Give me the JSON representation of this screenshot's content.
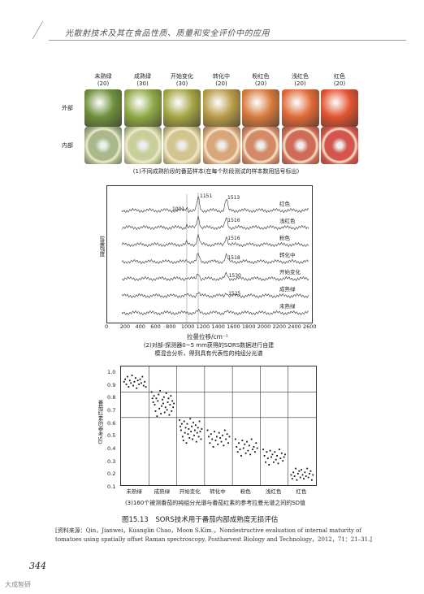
{
  "header": {
    "running_title": "光散射技术及其在食品性质、质量和安全评价中的应用"
  },
  "figure_a": {
    "stages": [
      {
        "name": "未熟绿",
        "n": "(20)"
      },
      {
        "name": "成熟绿",
        "n": "(30)"
      },
      {
        "name": "开始变化",
        "n": "(30)"
      },
      {
        "name": "转化中",
        "n": "(20)"
      },
      {
        "name": "粉红色",
        "n": "(20)"
      },
      {
        "name": "浅红色",
        "n": "(20)"
      },
      {
        "name": "红色",
        "n": "(20)"
      }
    ],
    "row_outer": "外部",
    "row_inner": "内部",
    "caption": "(1)不同成熟阶段的番茄样本(在每个阶段测试的样本数用括号标出)",
    "colors_outer": [
      "#6f8f3c",
      "#8fa945",
      "#a4a443",
      "#b79b47",
      "#d77a3b",
      "#e06a37",
      "#e2522f"
    ],
    "colors_inner": [
      "#a9b98b",
      "#c9cf9b",
      "#d2c58f",
      "#d7a77a",
      "#d48a66",
      "#cf6b57",
      "#d3554d"
    ]
  },
  "figure_b": {
    "ylabel": "拉曼强度",
    "xlabel": "拉曼位移/cm⁻¹",
    "xticks": [
      "0",
      "200",
      "400",
      "600",
      "800",
      "1000",
      "1200",
      "1400",
      "1600",
      "1800",
      "2000",
      "2200",
      "2400",
      "2600"
    ],
    "peak_labels": [
      "1001",
      "1151",
      "1513",
      "1516",
      "1516",
      "1518",
      "1530",
      "1525"
    ],
    "series_labels": [
      "红色",
      "浅红色",
      "粉色",
      "转化中",
      "开始变化",
      "成熟绿",
      "未熟绿"
    ],
    "caption_line1": "(2)对部-探测器0~5 mm获得的SORS数据进行自建",
    "caption_line2": "模混合分析，得到具有代表性的纯组分光谱"
  },
  "figure_c": {
    "ylabel": "番茄红素的参考SD",
    "yticks": [
      "1.0",
      "0.9",
      "0.8",
      "0.7",
      "0.6",
      "0.5",
      "0.4",
      "0.3",
      "0.2",
      "0.1"
    ],
    "xcats": [
      "未熟绿",
      "成熟绿",
      "开始变化",
      "转化中",
      "粉色",
      "浅红色",
      "红色"
    ],
    "caption": "(3)160个被测番茄的纯组分光谱与番茄红素的参考拉曼光谱之间的SD值"
  },
  "chart_data": {
    "type": "scatter",
    "ylabel": "番茄红素的参考SD",
    "categories": [
      "未熟绿",
      "成熟绿",
      "开始变化",
      "转化中",
      "粉色",
      "浅红色",
      "红色"
    ],
    "ylim": [
      0.1,
      1.0
    ],
    "series": [
      {
        "name": "未熟绿",
        "values": [
          0.93,
          0.95,
          0.91,
          0.97,
          0.89,
          0.94,
          0.92,
          0.98,
          0.9,
          0.93,
          0.96,
          0.88,
          0.94,
          0.91,
          0.95,
          0.92,
          0.97,
          0.9,
          0.93,
          0.89
        ]
      },
      {
        "name": "成熟绿",
        "values": [
          0.85,
          0.8,
          0.77,
          0.82,
          0.75,
          0.7,
          0.8,
          0.66,
          0.78,
          0.83,
          0.72,
          0.86,
          0.68,
          0.74,
          0.79,
          0.76,
          0.81,
          0.69,
          0.73,
          0.84,
          0.71,
          0.77,
          0.8,
          0.67,
          0.75,
          0.82,
          0.7,
          0.78,
          0.73,
          0.76
        ]
      },
      {
        "name": "开始变化",
        "values": [
          0.63,
          0.58,
          0.55,
          0.6,
          0.5,
          0.47,
          0.62,
          0.53,
          0.57,
          0.45,
          0.6,
          0.52,
          0.56,
          0.49,
          0.64,
          0.54,
          0.58,
          0.48,
          0.61,
          0.51,
          0.55,
          0.59,
          0.46,
          0.53,
          0.57,
          0.5,
          0.62,
          0.54,
          0.48,
          0.56
        ]
      },
      {
        "name": "转化中",
        "values": [
          0.55,
          0.5,
          0.45,
          0.52,
          0.48,
          0.42,
          0.54,
          0.47,
          0.5,
          0.44,
          0.53,
          0.49,
          0.46,
          0.51,
          0.43,
          0.55,
          0.48,
          0.52,
          0.45,
          0.5
        ]
      },
      {
        "name": "粉色",
        "values": [
          0.48,
          0.42,
          0.38,
          0.45,
          0.4,
          0.35,
          0.47,
          0.41,
          0.44,
          0.37,
          0.46,
          0.39,
          0.43,
          0.36,
          0.48,
          0.4,
          0.42,
          0.38,
          0.45,
          0.41
        ]
      },
      {
        "name": "浅红色",
        "values": [
          0.4,
          0.35,
          0.3,
          0.38,
          0.33,
          0.28,
          0.39,
          0.34,
          0.36,
          0.3,
          0.38,
          0.32,
          0.35,
          0.29,
          0.4,
          0.33,
          0.37,
          0.31,
          0.34,
          0.36
        ]
      },
      {
        "name": "红色",
        "values": [
          0.2,
          0.17,
          0.22,
          0.19,
          0.25,
          0.16,
          0.21,
          0.23,
          0.18,
          0.24,
          0.2,
          0.17,
          0.22,
          0.19,
          0.25,
          0.18,
          0.21,
          0.23,
          0.16,
          0.2
        ]
      }
    ],
    "hlines": [
      0.85,
      0.65
    ]
  },
  "figure_title": "图15.13　SORS技术用于番茄内部成熟度无损评估",
  "source_text": "[资料来源：Qin，Jianwei，Kuanglin Chao，Moon S.Kim.，Nondestructive evaluation of internal maturity of tomatoes using spatially offset Raman spectroscopy. Postharvest Biology and Technology，2012，71：21–31.]",
  "page_number": "344",
  "watermark": "大成智研"
}
